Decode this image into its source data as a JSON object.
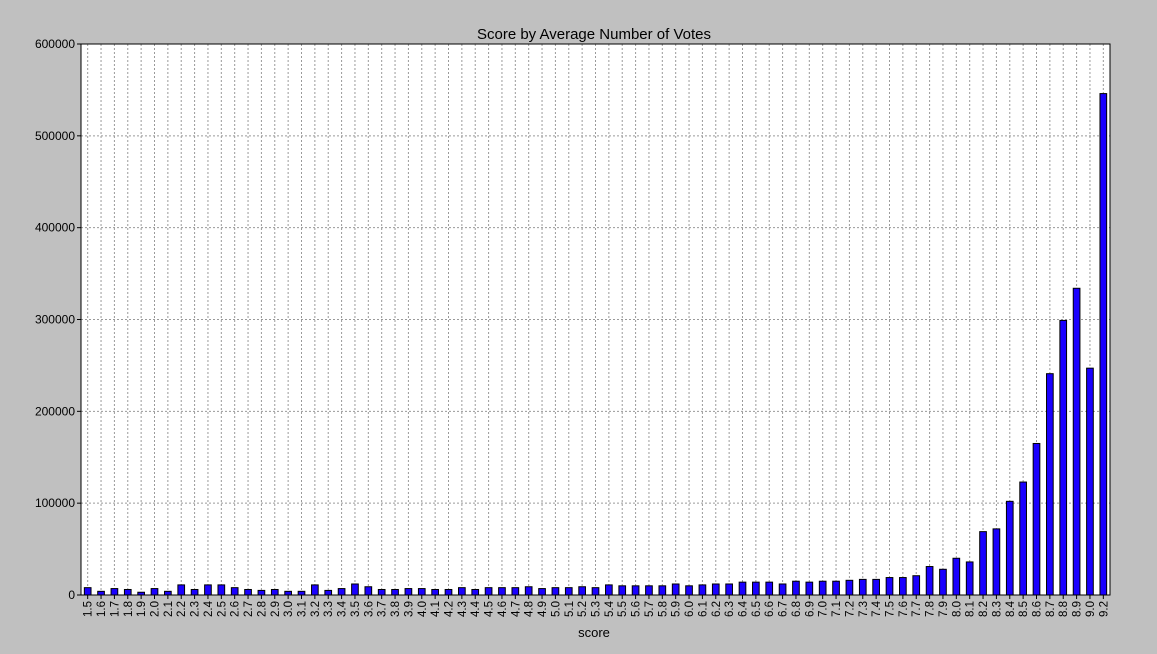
{
  "chart_data": {
    "type": "bar",
    "title": "Score by Average Number of Votes",
    "xlabel": "score",
    "ylabel": "",
    "ylim": [
      0,
      600000
    ],
    "yticks": [
      0,
      100000,
      200000,
      300000,
      400000,
      500000,
      600000
    ],
    "ytick_labels": [
      "0",
      "100000",
      "200000",
      "300000",
      "400000",
      "500000",
      "600000"
    ],
    "grid": true,
    "legend": "none",
    "bar_color": "#1a00ff",
    "categories": [
      "1.5",
      "1.6",
      "1.7",
      "1.8",
      "1.9",
      "2.0",
      "2.1",
      "2.2",
      "2.3",
      "2.4",
      "2.5",
      "2.6",
      "2.7",
      "2.8",
      "2.9",
      "3.0",
      "3.1",
      "3.2",
      "3.3",
      "3.4",
      "3.5",
      "3.6",
      "3.7",
      "3.8",
      "3.9",
      "4.0",
      "4.1",
      "4.2",
      "4.3",
      "4.4",
      "4.5",
      "4.6",
      "4.7",
      "4.8",
      "4.9",
      "5.0",
      "5.1",
      "5.2",
      "5.3",
      "5.4",
      "5.5",
      "5.6",
      "5.7",
      "5.8",
      "5.9",
      "6.0",
      "6.1",
      "6.2",
      "6.3",
      "6.4",
      "6.5",
      "6.6",
      "6.7",
      "6.8",
      "6.9",
      "7.0",
      "7.1",
      "7.2",
      "7.3",
      "7.4",
      "7.5",
      "7.6",
      "7.7",
      "7.8",
      "7.9",
      "8.0",
      "8.1",
      "8.2",
      "8.3",
      "8.4",
      "8.5",
      "8.6",
      "8.7",
      "8.8",
      "8.9",
      "9.0",
      "9.2"
    ],
    "values": [
      8000,
      4000,
      7000,
      6000,
      3000,
      7000,
      4000,
      11000,
      6000,
      11000,
      11000,
      8000,
      6000,
      5000,
      6000,
      4000,
      4000,
      11000,
      5000,
      7000,
      12000,
      9000,
      6000,
      6000,
      7000,
      7000,
      6000,
      6000,
      8000,
      6000,
      8000,
      8000,
      8000,
      9000,
      7000,
      8000,
      8000,
      9000,
      8000,
      11000,
      10000,
      10000,
      10000,
      10000,
      12000,
      10000,
      11000,
      12000,
      12000,
      14000,
      14000,
      14000,
      12000,
      15000,
      14000,
      15000,
      15000,
      16000,
      17000,
      17000,
      19000,
      19000,
      21000,
      31000,
      28000,
      40000,
      36000,
      69000,
      72000,
      102000,
      123000,
      165000,
      241000,
      299000,
      334000,
      247000,
      546000
    ]
  }
}
